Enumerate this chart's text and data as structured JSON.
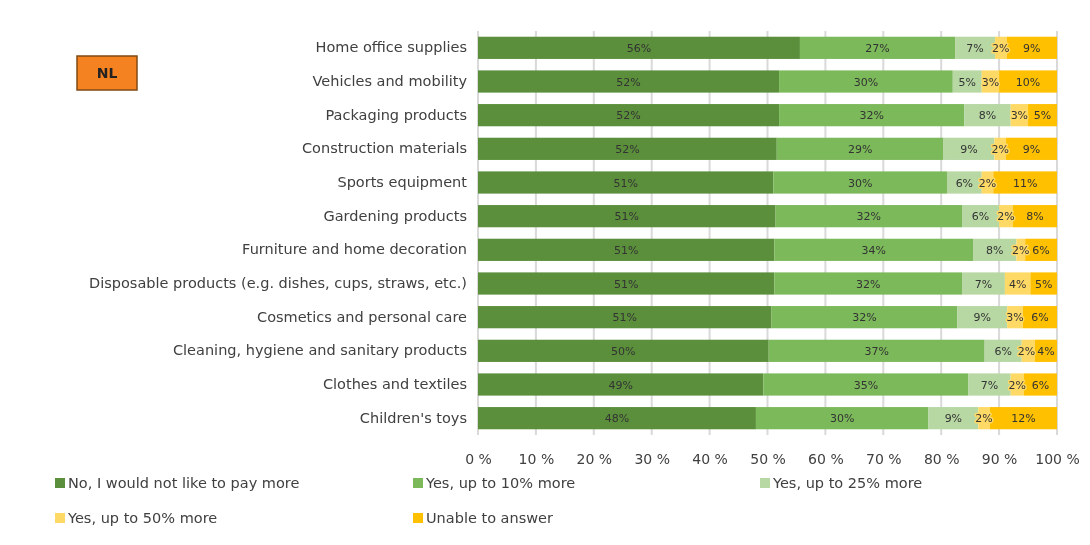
{
  "chart_data": {
    "type": "bar",
    "orientation": "horizontal",
    "stacked": true,
    "categories": [
      "Home office supplies",
      "Vehicles and mobility",
      "Packaging products",
      "Construction materials",
      "Sports equipment",
      "Gardening products",
      "Furniture and home decoration",
      "Disposable products (e.g. dishes, cups, straws, etc.)",
      "Cosmetics and personal care",
      "Cleaning, hygiene and sanitary products",
      "Clothes and textiles",
      "Children's toys"
    ],
    "series": [
      {
        "name": "No, I would not like to pay more",
        "color": "#5b8f3b",
        "values": [
          55.6,
          52,
          52,
          51.6,
          51,
          51.4,
          51.2,
          51.2,
          50.7,
          50.2,
          49.3,
          48.0
        ],
        "value_labels": [
          "56%",
          "52%",
          "52%",
          "52%",
          "51%",
          "51%",
          "51%",
          "51%",
          "51%",
          "50%",
          "49%",
          "48%"
        ]
      },
      {
        "name": "Yes, up to 10% more",
        "color": "#7cb95a",
        "values": [
          26.8,
          30,
          32,
          28.8,
          30,
          32.2,
          34.3,
          32.4,
          32.1,
          37.3,
          35.4,
          29.8
        ],
        "value_labels": [
          "27%",
          "30%",
          "32%",
          "29%",
          "30%",
          "32%",
          "34%",
          "32%",
          "32%",
          "37%",
          "35%",
          "30%"
        ]
      },
      {
        "name": "Yes, up to 25% more",
        "color": "#b7d7a3",
        "values": [
          6.9,
          5,
          8,
          8.8,
          6,
          6.4,
          7.5,
          7.4,
          8.6,
          6.4,
          7.3,
          8.6
        ],
        "value_labels": [
          "7%",
          "5%",
          "8%",
          "9%",
          "6%",
          "6%",
          "8%",
          "7%",
          "9%",
          "6%",
          "7%",
          "9%"
        ]
      },
      {
        "name": "Yes, up to 50% more",
        "color": "#ffd966",
        "values": [
          2.0,
          3,
          3,
          2.0,
          2,
          2.4,
          1.5,
          4.4,
          2.7,
          2.3,
          2.3,
          2.0
        ],
        "value_labels": [
          "2%",
          "3%",
          "3%",
          "2%",
          "2%",
          "2%",
          "2%",
          "4%",
          "3%",
          "2%",
          "2%",
          "2%"
        ]
      },
      {
        "name": "Unable to answer",
        "color": "#ffc000",
        "values": [
          8.7,
          10,
          5,
          8.8,
          11,
          7.6,
          5.5,
          4.6,
          5.9,
          3.8,
          5.7,
          11.6
        ],
        "value_labels": [
          "9%",
          "10%",
          "5%",
          "9%",
          "11%",
          "8%",
          "6%",
          "5%",
          "6%",
          "4%",
          "6%",
          "12%"
        ]
      }
    ],
    "xlim": [
      0,
      100
    ],
    "xticks": [
      {
        "value": 0,
        "label": "0 %"
      },
      {
        "value": 10,
        "label": "10 %"
      },
      {
        "value": 20,
        "label": "20 %"
      },
      {
        "value": 30,
        "label": "30 %"
      },
      {
        "value": 40,
        "label": "40 %"
      },
      {
        "value": 50,
        "label": "50 %"
      },
      {
        "value": 60,
        "label": "60 %"
      },
      {
        "value": 70,
        "label": "70 %"
      },
      {
        "value": 80,
        "label": "80 %"
      },
      {
        "value": 90,
        "label": "90 %"
      },
      {
        "value": 100,
        "label": "100 %"
      }
    ],
    "grid": "x",
    "legend": "bottom",
    "annotations": [
      "NL"
    ]
  }
}
